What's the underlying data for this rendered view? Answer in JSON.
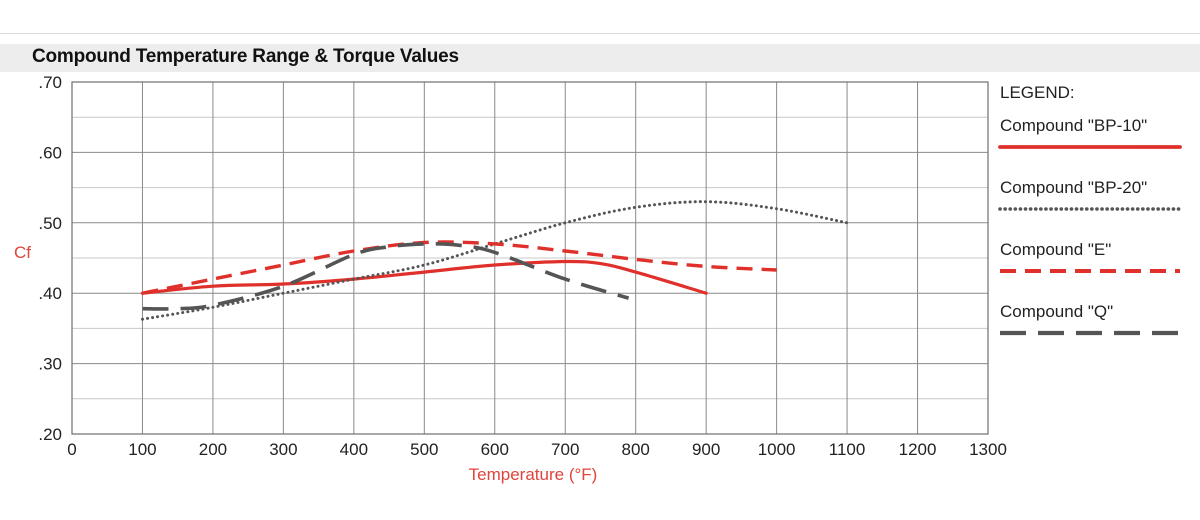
{
  "chart_data": {
    "type": "line",
    "title": "Compound Temperature Range & Torque Values",
    "xlabel": "Temperature (°F)",
    "ylabel": "Cf",
    "xlim": [
      0,
      1300
    ],
    "ylim": [
      0.2,
      0.7
    ],
    "x_ticks": [
      0,
      100,
      200,
      300,
      400,
      500,
      600,
      700,
      800,
      900,
      1000,
      1100,
      1200,
      1300
    ],
    "x_tick_labels": [
      "0",
      "100",
      "200",
      "300",
      "400",
      "500",
      "600",
      "700",
      "800",
      "900",
      "1000",
      "1100",
      "1200",
      "1300"
    ],
    "y_ticks": [
      0.2,
      0.3,
      0.4,
      0.5,
      0.6,
      0.7
    ],
    "y_tick_labels": [
      ".20",
      ".30",
      ".40",
      ".50",
      ".60",
      ".70"
    ],
    "grid": true,
    "legend": {
      "title": "LEGEND:",
      "placement": "right"
    },
    "series": [
      {
        "name": "Compound \"BP-10\"",
        "color": "#e0302b",
        "style": "solid",
        "x": [
          100,
          200,
          300,
          400,
          500,
          600,
          700,
          750,
          800,
          900
        ],
        "y": [
          0.4,
          0.41,
          0.413,
          0.42,
          0.43,
          0.44,
          0.445,
          0.442,
          0.43,
          0.4
        ]
      },
      {
        "name": "Compound \"BP-20\"",
        "color": "#555555",
        "style": "dotted",
        "x": [
          100,
          200,
          300,
          400,
          500,
          600,
          700,
          800,
          900,
          1000,
          1100
        ],
        "y": [
          0.363,
          0.38,
          0.4,
          0.42,
          0.44,
          0.47,
          0.5,
          0.522,
          0.53,
          0.52,
          0.5
        ]
      },
      {
        "name": "Compound \"E\"",
        "color": "#e0302b",
        "style": "dashed",
        "x": [
          100,
          200,
          300,
          400,
          500,
          600,
          700,
          800,
          900,
          1000
        ],
        "y": [
          0.4,
          0.42,
          0.44,
          0.46,
          0.472,
          0.47,
          0.46,
          0.448,
          0.438,
          0.433
        ]
      },
      {
        "name": "Compound \"Q\"",
        "color": "#555555",
        "style": "longdash",
        "x": [
          100,
          150,
          200,
          300,
          400,
          450,
          500,
          550,
          600,
          700,
          790
        ],
        "y": [
          0.378,
          0.378,
          0.383,
          0.41,
          0.455,
          0.466,
          0.47,
          0.468,
          0.458,
          0.42,
          0.393
        ]
      }
    ]
  }
}
